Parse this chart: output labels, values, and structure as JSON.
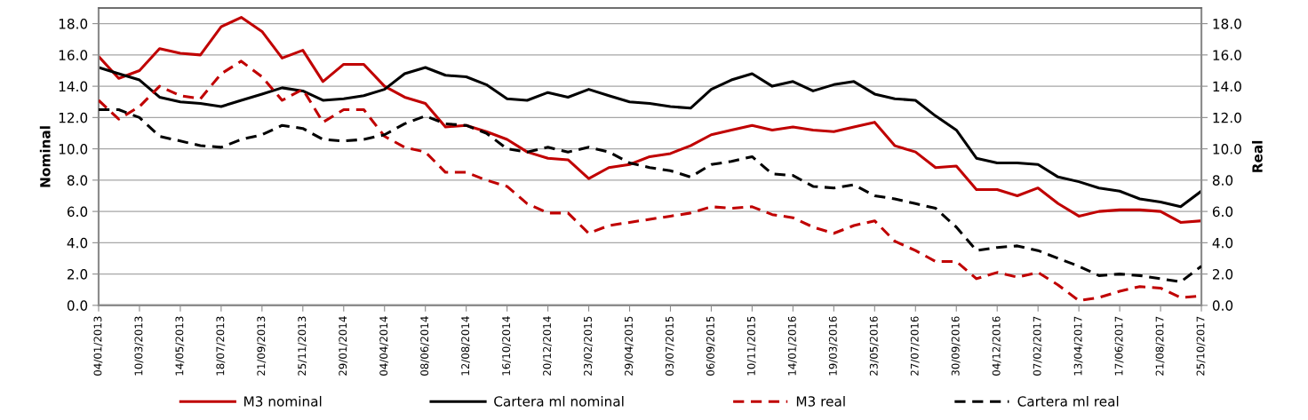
{
  "chart_data": {
    "type": "line",
    "ylabel": "Nominal",
    "y2label": "Real",
    "x": [
      "2013-01-04",
      "2013-02-05",
      "2013-03-10",
      "2013-04-11",
      "2013-05-14",
      "2013-06-15",
      "2013-07-18",
      "2013-08-19",
      "2013-09-21",
      "2013-10-23",
      "2013-11-25",
      "2013-12-27",
      "2014-01-29",
      "2014-03-02",
      "2014-04-04",
      "2014-05-06",
      "2014-06-08",
      "2014-07-10",
      "2014-08-12",
      "2014-09-13",
      "2014-10-16",
      "2014-11-17",
      "2014-12-20",
      "2015-01-21",
      "2015-02-23",
      "2015-03-27",
      "2015-04-29",
      "2015-05-31",
      "2015-07-03",
      "2015-08-04",
      "2015-09-06",
      "2015-10-08",
      "2015-11-10",
      "2015-12-12",
      "2016-01-14",
      "2016-02-15",
      "2016-03-19",
      "2016-04-20",
      "2016-05-23",
      "2016-06-24",
      "2016-07-27",
      "2016-08-28",
      "2016-09-30",
      "2016-11-01",
      "2016-12-04",
      "2017-01-05",
      "2017-02-07",
      "2017-03-11",
      "2017-04-13",
      "2017-05-15",
      "2017-06-17",
      "2017-07-19",
      "2017-08-21",
      "2017-09-22",
      "2017-10-25"
    ],
    "series": [
      {
        "name": "M3 nominal",
        "color": "#c00000",
        "line_style": "solid",
        "values": [
          15.9,
          14.5,
          15.0,
          16.4,
          16.1,
          16.0,
          17.8,
          18.4,
          17.5,
          15.8,
          16.3,
          14.3,
          15.4,
          15.4,
          14.0,
          13.3,
          12.9,
          11.4,
          11.5,
          11.1,
          10.6,
          9.8,
          9.4,
          9.3,
          8.1,
          8.8,
          9.0,
          9.5,
          9.7,
          10.2,
          10.9,
          11.2,
          11.5,
          11.2,
          11.4,
          11.2,
          11.1,
          11.4,
          11.7,
          10.2,
          9.8,
          8.8,
          8.9,
          7.4,
          7.4,
          7.0,
          7.5,
          6.5,
          5.7,
          6.0,
          6.1,
          6.1,
          6.0,
          5.3,
          5.4
        ]
      },
      {
        "name": "Cartera ml nominal",
        "color": "#000000",
        "line_style": "solid",
        "values": [
          15.2,
          14.8,
          14.4,
          13.3,
          13.0,
          12.9,
          12.7,
          13.1,
          13.5,
          13.9,
          13.7,
          13.1,
          13.2,
          13.4,
          13.8,
          14.8,
          15.2,
          14.7,
          14.6,
          14.1,
          13.2,
          13.1,
          13.6,
          13.3,
          13.8,
          13.4,
          13.0,
          12.9,
          12.7,
          12.6,
          13.8,
          14.4,
          14.8,
          14.0,
          14.3,
          13.7,
          14.1,
          14.3,
          13.5,
          13.2,
          13.1,
          12.1,
          11.2,
          9.4,
          9.1,
          9.1,
          9.0,
          8.2,
          7.9,
          7.5,
          7.3,
          6.8,
          6.6,
          6.3,
          7.3
        ]
      },
      {
        "name": "M3 real",
        "color": "#c00000",
        "line_style": "dashed",
        "axis": "y2",
        "values": [
          13.1,
          11.9,
          12.7,
          14.0,
          13.4,
          13.2,
          14.8,
          15.6,
          14.6,
          13.1,
          13.8,
          11.7,
          12.5,
          12.5,
          10.8,
          10.1,
          9.8,
          8.5,
          8.5,
          8.0,
          7.6,
          6.5,
          5.9,
          5.9,
          4.6,
          5.1,
          5.3,
          5.5,
          5.7,
          5.9,
          6.3,
          6.2,
          6.3,
          5.8,
          5.6,
          5.0,
          4.6,
          5.1,
          5.4,
          4.1,
          3.5,
          2.8,
          2.8,
          1.7,
          2.1,
          1.8,
          2.1,
          1.3,
          0.3,
          0.5,
          0.9,
          1.2,
          1.1,
          0.5,
          0.6
        ]
      },
      {
        "name": "Cartera ml real",
        "color": "#000000",
        "line_style": "dashed",
        "axis": "y2",
        "values": [
          12.5,
          12.5,
          12.0,
          10.8,
          10.5,
          10.2,
          10.1,
          10.6,
          10.9,
          11.5,
          11.3,
          10.6,
          10.5,
          10.6,
          10.9,
          11.6,
          12.1,
          11.6,
          11.5,
          11.0,
          10.0,
          9.8,
          10.1,
          9.8,
          10.1,
          9.8,
          9.1,
          8.8,
          8.6,
          8.2,
          9.0,
          9.2,
          9.5,
          8.4,
          8.3,
          7.6,
          7.5,
          7.7,
          7.0,
          6.8,
          6.5,
          6.2,
          5.0,
          3.5,
          3.7,
          3.8,
          3.5,
          3.0,
          2.5,
          1.9,
          2.0,
          1.9,
          1.7,
          1.5,
          2.5
        ]
      }
    ],
    "xlim": [
      "2013-01-04",
      "2017-10-25"
    ],
    "xticks": [
      {
        "value": "2013-01-04",
        "label": "04/01/2013"
      },
      {
        "value": "2013-03-10",
        "label": "10/03/2013"
      },
      {
        "value": "2013-05-14",
        "label": "14/05/2013"
      },
      {
        "value": "2013-07-18",
        "label": "18/07/2013"
      },
      {
        "value": "2013-09-21",
        "label": "21/09/2013"
      },
      {
        "value": "2013-11-25",
        "label": "25/11/2013"
      },
      {
        "value": "2014-01-29",
        "label": "29/01/2014"
      },
      {
        "value": "2014-04-04",
        "label": "04/04/2014"
      },
      {
        "value": "2014-06-08",
        "label": "08/06/2014"
      },
      {
        "value": "2014-08-12",
        "label": "12/08/2014"
      },
      {
        "value": "2014-10-16",
        "label": "16/10/2014"
      },
      {
        "value": "2014-12-20",
        "label": "20/12/2014"
      },
      {
        "value": "2015-02-23",
        "label": "23/02/2015"
      },
      {
        "value": "2015-04-29",
        "label": "29/04/2015"
      },
      {
        "value": "2015-07-03",
        "label": "03/07/2015"
      },
      {
        "value": "2015-09-06",
        "label": "06/09/2015"
      },
      {
        "value": "2015-11-10",
        "label": "10/11/2015"
      },
      {
        "value": "2016-01-14",
        "label": "14/01/2016"
      },
      {
        "value": "2016-03-19",
        "label": "19/03/2016"
      },
      {
        "value": "2016-05-23",
        "label": "23/05/2016"
      },
      {
        "value": "2016-07-27",
        "label": "27/07/2016"
      },
      {
        "value": "2016-09-30",
        "label": "30/09/2016"
      },
      {
        "value": "2016-12-04",
        "label": "04/12/2016"
      },
      {
        "value": "2017-02-07",
        "label": "07/02/2017"
      },
      {
        "value": "2017-04-13",
        "label": "13/04/2017"
      },
      {
        "value": "2017-06-17",
        "label": "17/06/2017"
      },
      {
        "value": "2017-08-21",
        "label": "21/08/2017"
      },
      {
        "value": "2017-10-25",
        "label": "25/10/2017"
      }
    ],
    "ylim": [
      0,
      19
    ],
    "yticks": [
      {
        "value": 0,
        "label": "0.0"
      },
      {
        "value": 2,
        "label": "2.0"
      },
      {
        "value": 4,
        "label": "4.0"
      },
      {
        "value": 6,
        "label": "6.0"
      },
      {
        "value": 8,
        "label": "8.0"
      },
      {
        "value": 10,
        "label": "10.0"
      },
      {
        "value": 12,
        "label": "12.0"
      },
      {
        "value": 14,
        "label": "14.0"
      },
      {
        "value": 16,
        "label": "16.0"
      },
      {
        "value": 18,
        "label": "18.0"
      }
    ],
    "y2lim": [
      0,
      19
    ],
    "y2ticks": [
      {
        "value": 0,
        "label": "0.0"
      },
      {
        "value": 2,
        "label": "2.0"
      },
      {
        "value": 4,
        "label": "4.0"
      },
      {
        "value": 6,
        "label": "6.0"
      },
      {
        "value": 8,
        "label": "8.0"
      },
      {
        "value": 10,
        "label": "10.0"
      },
      {
        "value": 12,
        "label": "12.0"
      },
      {
        "value": 14,
        "label": "14.0"
      },
      {
        "value": 16,
        "label": "16.0"
      },
      {
        "value": 18,
        "label": "18.0"
      }
    ],
    "grid": "y",
    "legend": "bottom",
    "marker": "none"
  }
}
